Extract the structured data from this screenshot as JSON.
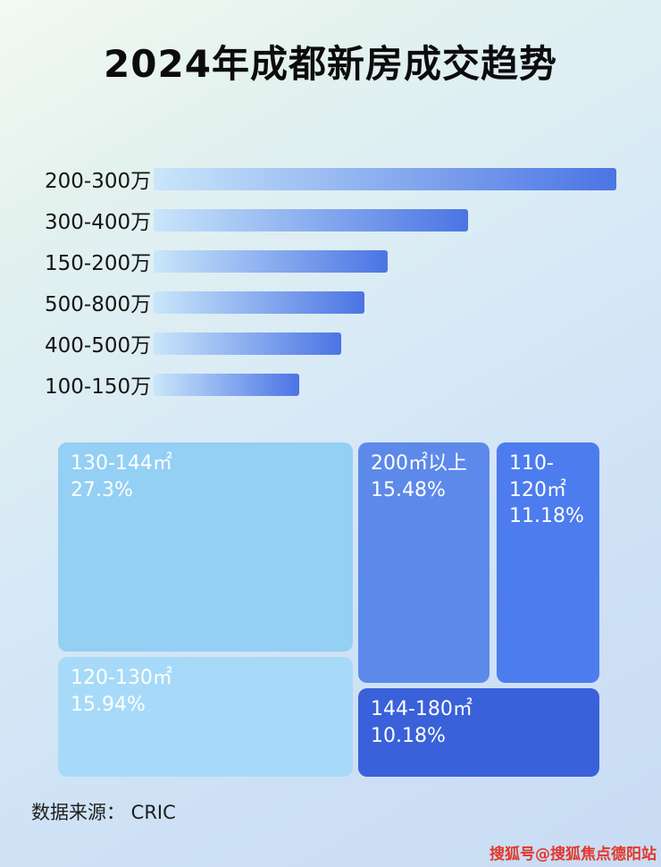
{
  "title": "2024年成都新房成交趋势",
  "footer": {
    "source_label": "数据来源：  CRIC"
  },
  "watermark": "搜狐号@搜狐焦点德阳站",
  "colors": {
    "bar_gradient_start": "#c9e6fa",
    "bar_gradient_end": "#4b74e4",
    "title_color": "#0c0c0c",
    "watermark_color": "#e2372a"
  },
  "chart_data": [
    {
      "type": "bar",
      "orientation": "horizontal",
      "categories": [
        "200-300万",
        "300-400万",
        "150-200万",
        "500-800万",
        "400-500万",
        "100-150万"
      ],
      "values_pct_of_max": [
        100,
        68,
        50.5,
        45.5,
        40.5,
        31.5
      ],
      "xlabel": "",
      "ylabel": "",
      "grid": false,
      "legend": false
    },
    {
      "type": "treemap",
      "items": [
        {
          "label": "130-144㎡",
          "value": "27.3%",
          "color": "#94cff4"
        },
        {
          "label": "200㎡以上",
          "value": "15.48%",
          "color": "#5d89ea"
        },
        {
          "label": "110-120㎡",
          "value": "11.18%",
          "color": "#4c7cee"
        },
        {
          "label": "120-130㎡",
          "value": "15.94%",
          "color": "#a7daf8"
        },
        {
          "label": "144-180㎡",
          "value": "10.18%",
          "color": "#3a61da"
        }
      ]
    }
  ]
}
